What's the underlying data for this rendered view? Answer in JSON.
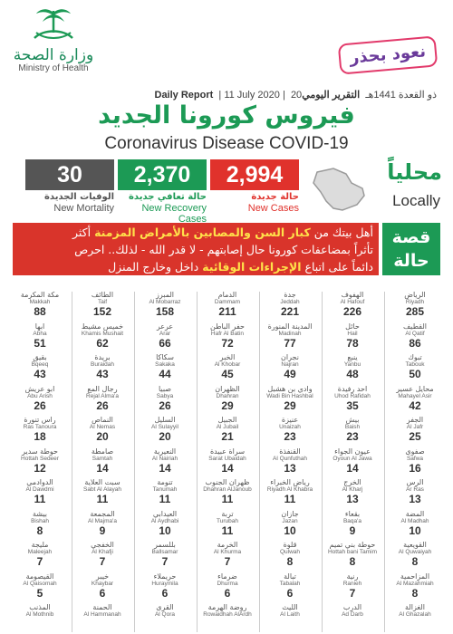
{
  "header": {
    "logo_ar": "وزارة الصحة",
    "logo_en": "Ministry of Health",
    "slogan": "نعود بحذر",
    "report_ar": "التقرير اليومي",
    "report_hijri": "20ذو القعدة 1441هـ",
    "report_date": "11 July 2020",
    "report_en": "Daily Report",
    "title_ar": "فيروس كورونا الجديد",
    "title_en": "Coronavirus Disease COVID-19"
  },
  "stats": {
    "new_cases": {
      "value": "2,994",
      "ar": "حالة جديدة",
      "en": "New Cases"
    },
    "recovery": {
      "value": "2,370",
      "ar": "حالة تعافي جديدة",
      "en": "New Recovery Cases"
    },
    "mortality": {
      "value": "30",
      "ar": "الوفيات الجديدة",
      "en": "New Mortality"
    },
    "locally_ar": "محلياً",
    "locally_en": "Locally"
  },
  "story": {
    "label_line1": "قصة",
    "label_line2": "حالة",
    "line1_pre": "أهل بيتك من ",
    "line1_em": "كبار السن والمصابين بالأمراض المزمنة",
    "line1_post": " أكثر",
    "line2": "تأثراً بمضاعفات كورونا حال إصابتهم - لا قدر الله - لذلك.. احرص",
    "line3_pre": "دائماً على اتباع ",
    "line3_em": "الإجراءات الوقائية",
    "line3_post": " داخل وخارج المنزل"
  },
  "colors": {
    "red": "#e0322c",
    "green": "#1c9a55",
    "gray": "#555555",
    "pink": "#e23a6b",
    "purple": "#6a3a9a"
  },
  "cities": [
    [
      {
        "ar": "الرياض",
        "en": "Riyadh",
        "n": "285"
      },
      {
        "ar": "القطيف",
        "en": "Al Qatif",
        "n": "86"
      },
      {
        "ar": "تبوك",
        "en": "Tabouk",
        "n": "50"
      },
      {
        "ar": "محايل عسير",
        "en": "Mahayel Asir",
        "n": "42"
      },
      {
        "ar": "الجفر",
        "en": "Al Jafr",
        "n": "25"
      },
      {
        "ar": "صفوى",
        "en": "Safwa",
        "n": "16"
      },
      {
        "ar": "الرس",
        "en": "Ar Ras",
        "n": "13"
      },
      {
        "ar": "المضة",
        "en": "Al Madhah",
        "n": "10"
      },
      {
        "ar": "القويعية",
        "en": "Al Quwaiyah",
        "n": "8"
      },
      {
        "ar": "المزاحمية",
        "en": "Al Mazahmiah",
        "n": "8"
      },
      {
        "ar": "الغزالة",
        "en": "Al Ghazalah",
        "n": ""
      }
    ],
    [
      {
        "ar": "الهفوف",
        "en": "Al Hafouf",
        "n": "226"
      },
      {
        "ar": "حائل",
        "en": "Hail",
        "n": "78"
      },
      {
        "ar": "ينبع",
        "en": "Yanbu",
        "n": "48"
      },
      {
        "ar": "أحد رفيدة",
        "en": "Uhod Rafidah",
        "n": "35"
      },
      {
        "ar": "بيش",
        "en": "Baish",
        "n": "23"
      },
      {
        "ar": "عيون الجواء",
        "en": "Oyoun Al Jawa",
        "n": "14"
      },
      {
        "ar": "الخرج",
        "en": "Al Kharj",
        "n": "13"
      },
      {
        "ar": "بقعاء",
        "en": "Baqa'a",
        "n": "9"
      },
      {
        "ar": "حوطة بني تميم",
        "en": "Hottah bani Tamim",
        "n": "8"
      },
      {
        "ar": "رنية",
        "en": "Ranieh",
        "n": "7"
      },
      {
        "ar": "الدرب",
        "en": "Ad Darb",
        "n": ""
      }
    ],
    [
      {
        "ar": "جدة",
        "en": "Jeddah",
        "n": "221"
      },
      {
        "ar": "المدينة المنورة",
        "en": "Madinah",
        "n": "77"
      },
      {
        "ar": "نجران",
        "en": "Najran",
        "n": "49"
      },
      {
        "ar": "وادي بن هشبل",
        "en": "Wadi Bin Hashbal",
        "n": "29"
      },
      {
        "ar": "عنيزة",
        "en": "Unaizah",
        "n": "23"
      },
      {
        "ar": "القنفذة",
        "en": "Al Qunfuthah",
        "n": "13"
      },
      {
        "ar": "رياض الخبراء",
        "en": "Riyadh Al Khabra",
        "n": "11"
      },
      {
        "ar": "جازان",
        "en": "Jazan",
        "n": "10"
      },
      {
        "ar": "قلوة",
        "en": "Qulwah",
        "n": "8"
      },
      {
        "ar": "تبالة",
        "en": "Tabalah",
        "n": "6"
      },
      {
        "ar": "الليث",
        "en": "Al Laith",
        "n": ""
      }
    ],
    [
      {
        "ar": "الدمام",
        "en": "Dammam",
        "n": "211"
      },
      {
        "ar": "حفر الباطن",
        "en": "Hafr Al Batin",
        "n": "72"
      },
      {
        "ar": "الخبر",
        "en": "Al Khobar",
        "n": "45"
      },
      {
        "ar": "الظهران",
        "en": "Dhahran",
        "n": "29"
      },
      {
        "ar": "الجبيل",
        "en": "Al Jubail",
        "n": "21"
      },
      {
        "ar": "سراة عبيدة",
        "en": "Sarat Ubaidah",
        "n": "14"
      },
      {
        "ar": "ظهران الجنوب",
        "en": "Dhahran AlJanoub",
        "n": "11"
      },
      {
        "ar": "تربة",
        "en": "Turubah",
        "n": "11"
      },
      {
        "ar": "الخرمة",
        "en": "Al Khurma",
        "n": "7"
      },
      {
        "ar": "ضرماء",
        "en": "Dhurma",
        "n": "6"
      },
      {
        "ar": "روضة الهرمة",
        "en": "Rowaidhah AlArdh",
        "n": ""
      }
    ],
    [
      {
        "ar": "المبرز",
        "en": "Al Mobarraz",
        "n": "158"
      },
      {
        "ar": "عرعر",
        "en": "Arar",
        "n": "66"
      },
      {
        "ar": "سكاكا",
        "en": "Sakaka",
        "n": "44"
      },
      {
        "ar": "صبيا",
        "en": "Sabya",
        "n": "26"
      },
      {
        "ar": "السليل",
        "en": "Al Sulayyil",
        "n": "20"
      },
      {
        "ar": "النعيرية",
        "en": "Al Nairiah",
        "n": "14"
      },
      {
        "ar": "تنومة",
        "en": "Tanumah",
        "n": "11"
      },
      {
        "ar": "العيدابي",
        "en": "Al Aydhabi",
        "n": "10"
      },
      {
        "ar": "بللسمر",
        "en": "Ballsamar",
        "n": "7"
      },
      {
        "ar": "حريملاء",
        "en": "Huraymila",
        "n": "6"
      },
      {
        "ar": "القرى",
        "en": "Al Qora",
        "n": ""
      }
    ],
    [
      {
        "ar": "الطائف",
        "en": "Taif",
        "n": "152"
      },
      {
        "ar": "خميس مشيط",
        "en": "Khamis Mushait",
        "n": "62"
      },
      {
        "ar": "بريدة",
        "en": "Buraidah",
        "n": "43"
      },
      {
        "ar": "رجال ألمع",
        "en": "Rejal Alma'a",
        "n": "26"
      },
      {
        "ar": "النماص",
        "en": "Al Nemas",
        "n": "20"
      },
      {
        "ar": "صامطة",
        "en": "Samtah",
        "n": "14"
      },
      {
        "ar": "سبت العلاية",
        "en": "Sabt Al Alayah",
        "n": "11"
      },
      {
        "ar": "المجمعة",
        "en": "Al Majma'a",
        "n": "9"
      },
      {
        "ar": "الخفجي",
        "en": "Al Khafji",
        "n": "7"
      },
      {
        "ar": "خيبر",
        "en": "Khaybar",
        "n": "6"
      },
      {
        "ar": "الحمنة",
        "en": "Al Hammanah",
        "n": ""
      }
    ],
    [
      {
        "ar": "مكة المكرمة",
        "en": "Makkah",
        "n": "88"
      },
      {
        "ar": "أبها",
        "en": "Abha",
        "n": "51"
      },
      {
        "ar": "بقيق",
        "en": "Bqeeq",
        "n": "43"
      },
      {
        "ar": "أبو عريش",
        "en": "Abu Arish",
        "n": "26"
      },
      {
        "ar": "رأس تنورة",
        "en": "Ras Tanoura",
        "n": "18"
      },
      {
        "ar": "حوطة سدير",
        "en": "Hottah Sedeer",
        "n": "12"
      },
      {
        "ar": "الدوادمي",
        "en": "Al Dawdmi",
        "n": "11"
      },
      {
        "ar": "بيشة",
        "en": "Bishah",
        "n": "8"
      },
      {
        "ar": "مليجة",
        "en": "Maleejah",
        "n": "7"
      },
      {
        "ar": "القيصومة",
        "en": "Al Qaisomah",
        "n": "5"
      },
      {
        "ar": "المذنب",
        "en": "Al Mothnib",
        "n": ""
      }
    ]
  ]
}
